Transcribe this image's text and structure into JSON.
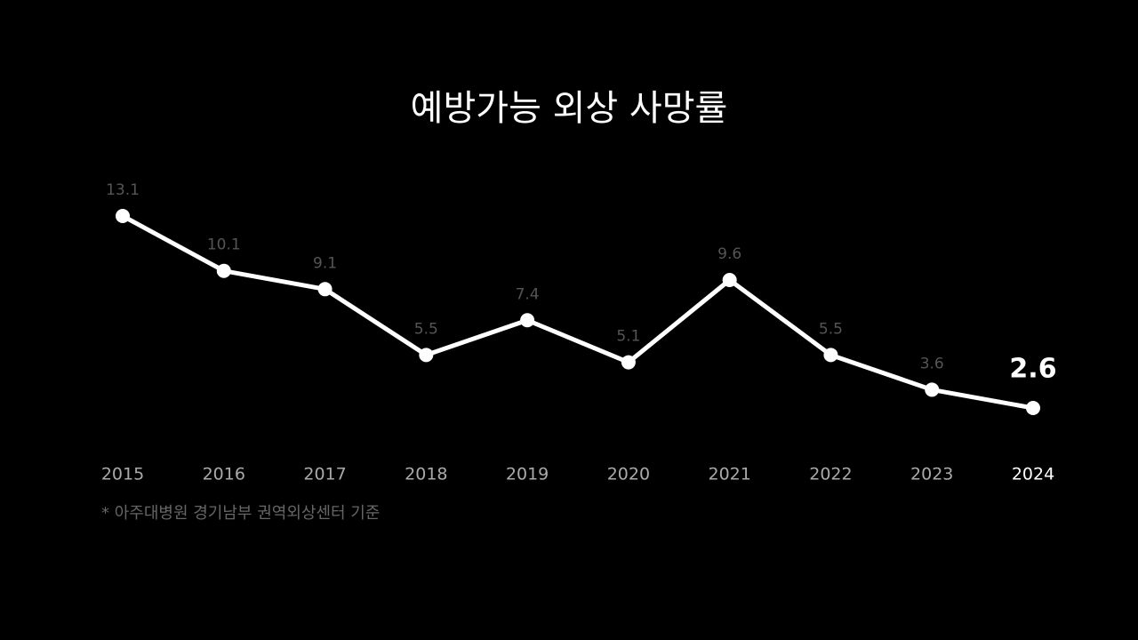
{
  "chart_data": {
    "type": "line",
    "title": "예방가능 외상 사망률",
    "categories": [
      "2015",
      "2016",
      "2017",
      "2018",
      "2019",
      "2020",
      "2021",
      "2022",
      "2023",
      "2024"
    ],
    "values": [
      13.1,
      10.1,
      9.1,
      5.5,
      7.4,
      5.1,
      9.6,
      5.5,
      3.6,
      2.6
    ],
    "color": "#ffffff",
    "note": "* 아주대병원 경기남부 권역외상센터 기준"
  }
}
